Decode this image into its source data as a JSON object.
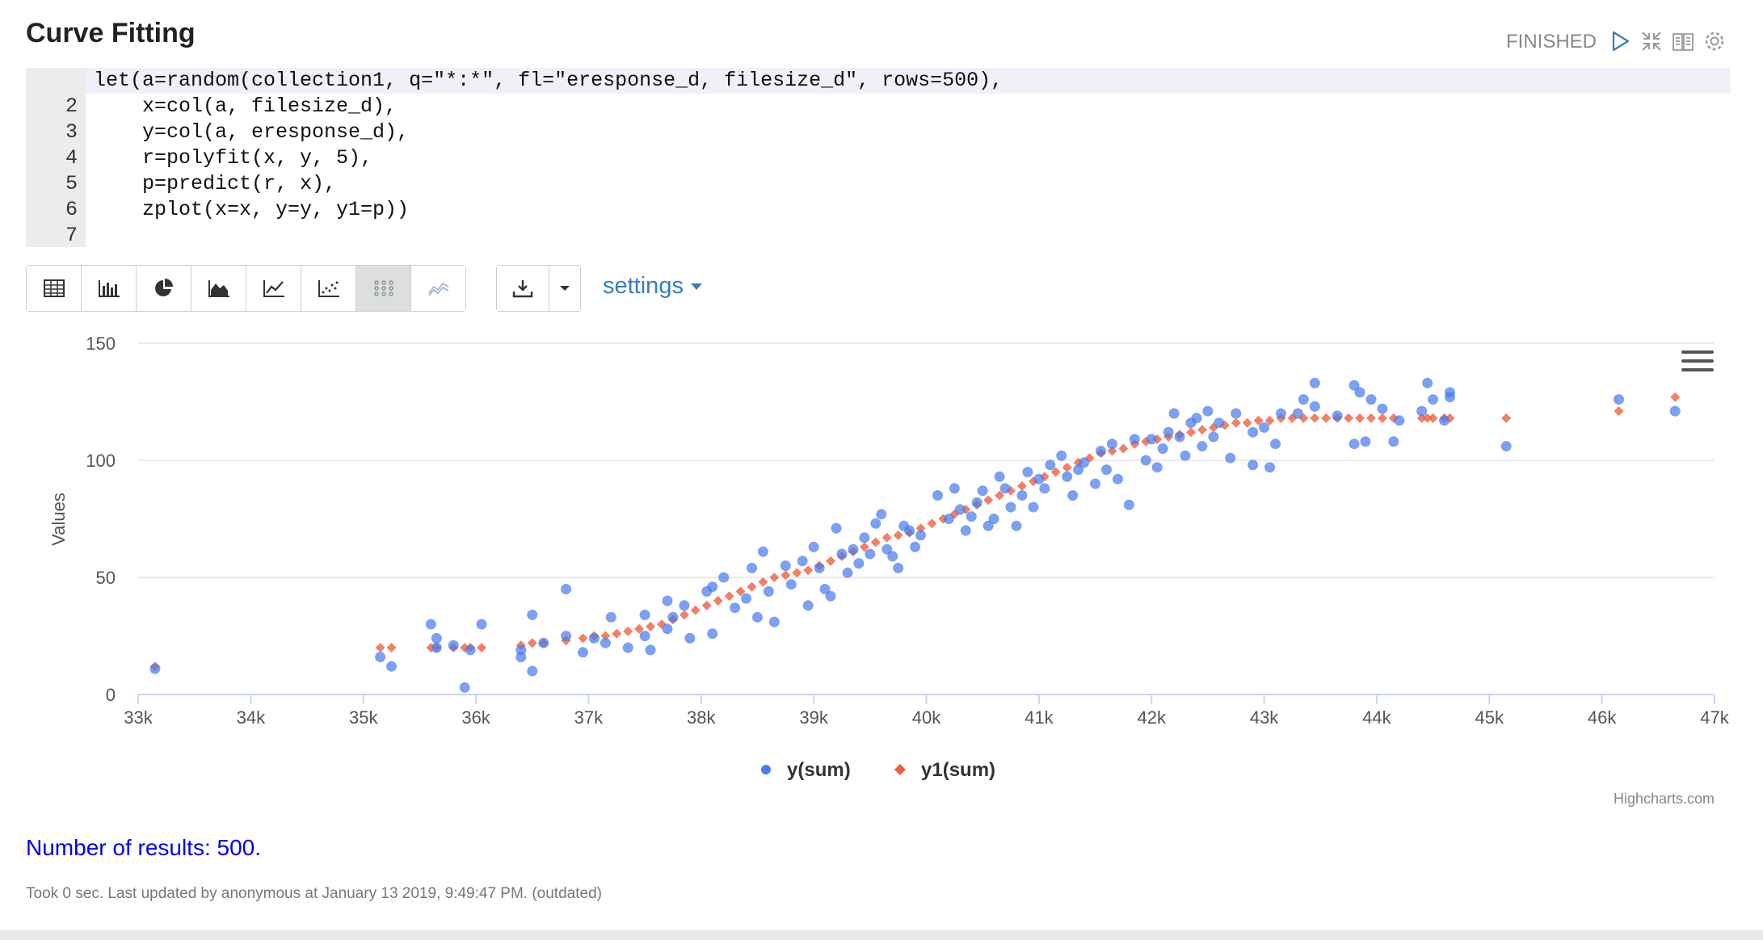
{
  "paragraph": {
    "title": "Curve Fitting",
    "status": "FINISHED",
    "icons": [
      "run-icon",
      "collapse-icon",
      "book-icon",
      "gear-icon"
    ]
  },
  "editor": {
    "line_numbers": [
      "",
      "2",
      "3",
      "4",
      "5",
      "6",
      "7"
    ],
    "lines": [
      "let(a=random(collection1, q=\"*:*\", fl=\"eresponse_d, filesize_d\", rows=500),",
      "    x=col(a, filesize_d),",
      "    y=col(a, eresponse_d),",
      "    r=polyfit(x, y, 5),",
      "    p=predict(r, x),",
      "    zplot(x=x, y=y, y1=p))",
      ""
    ]
  },
  "toolbar": {
    "view_buttons": [
      "table-icon",
      "bar-chart-icon",
      "pie-chart-icon",
      "area-chart-icon",
      "line-chart-icon",
      "scatter-chart-icon",
      "bubble-chart-icon",
      "trend-chart-icon"
    ],
    "active_view": "bubble-chart-icon",
    "export_buttons": [
      "download-icon",
      "caret-down-icon"
    ],
    "settings_label": "settings"
  },
  "chart_data": {
    "type": "scatter",
    "ylabel": "Values",
    "xlabel": "",
    "xlim": [
      33000,
      47000
    ],
    "ylim": [
      0,
      150
    ],
    "x_ticks": [
      "33k",
      "34k",
      "35k",
      "36k",
      "37k",
      "38k",
      "39k",
      "40k",
      "41k",
      "42k",
      "43k",
      "44k",
      "45k",
      "46k",
      "47k"
    ],
    "y_ticks": [
      "0",
      "50",
      "100",
      "150"
    ],
    "grid": true,
    "legend": "bottom-center",
    "credit": "Highcharts.com",
    "colors": {
      "y": "#4a7ced",
      "y1": "#f0603f"
    },
    "series": [
      {
        "name": "y(sum)",
        "marker": "circle",
        "points": [
          [
            33150,
            11
          ],
          [
            35150,
            16
          ],
          [
            35250,
            12
          ],
          [
            35600,
            30
          ],
          [
            35650,
            24
          ],
          [
            35650,
            20
          ],
          [
            35800,
            21
          ],
          [
            35900,
            3
          ],
          [
            35950,
            19
          ],
          [
            36050,
            30
          ],
          [
            36400,
            16
          ],
          [
            36400,
            19
          ],
          [
            36500,
            34
          ],
          [
            36500,
            10
          ],
          [
            36600,
            22
          ],
          [
            36800,
            45
          ],
          [
            36800,
            25
          ],
          [
            36950,
            18
          ],
          [
            37050,
            24
          ],
          [
            37150,
            22
          ],
          [
            37200,
            33
          ],
          [
            37350,
            20
          ],
          [
            37500,
            25
          ],
          [
            37500,
            34
          ],
          [
            37550,
            19
          ],
          [
            37700,
            40
          ],
          [
            37700,
            28
          ],
          [
            37750,
            33
          ],
          [
            37850,
            38
          ],
          [
            37900,
            24
          ],
          [
            38050,
            44
          ],
          [
            38100,
            46
          ],
          [
            38100,
            26
          ],
          [
            38200,
            50
          ],
          [
            38300,
            37
          ],
          [
            38400,
            41
          ],
          [
            38450,
            54
          ],
          [
            38500,
            33
          ],
          [
            38550,
            61
          ],
          [
            38600,
            44
          ],
          [
            38650,
            31
          ],
          [
            38750,
            55
          ],
          [
            38800,
            47
          ],
          [
            38900,
            57
          ],
          [
            38950,
            38
          ],
          [
            39000,
            63
          ],
          [
            39050,
            54
          ],
          [
            39100,
            45
          ],
          [
            39150,
            42
          ],
          [
            39200,
            71
          ],
          [
            39250,
            60
          ],
          [
            39300,
            52
          ],
          [
            39350,
            62
          ],
          [
            39400,
            56
          ],
          [
            39450,
            67
          ],
          [
            39500,
            60
          ],
          [
            39550,
            73
          ],
          [
            39600,
            77
          ],
          [
            39650,
            62
          ],
          [
            39700,
            59
          ],
          [
            39750,
            54
          ],
          [
            39800,
            72
          ],
          [
            39850,
            70
          ],
          [
            39900,
            63
          ],
          [
            39950,
            68
          ],
          [
            40100,
            85
          ],
          [
            40200,
            75
          ],
          [
            40250,
            88
          ],
          [
            40300,
            79
          ],
          [
            40350,
            70
          ],
          [
            40400,
            76
          ],
          [
            40450,
            82
          ],
          [
            40500,
            87
          ],
          [
            40550,
            72
          ],
          [
            40600,
            75
          ],
          [
            40650,
            93
          ],
          [
            40700,
            88
          ],
          [
            40750,
            80
          ],
          [
            40800,
            72
          ],
          [
            40850,
            85
          ],
          [
            40900,
            95
          ],
          [
            40950,
            80
          ],
          [
            41000,
            92
          ],
          [
            41050,
            88
          ],
          [
            41100,
            98
          ],
          [
            41200,
            102
          ],
          [
            41250,
            93
          ],
          [
            41300,
            85
          ],
          [
            41350,
            96
          ],
          [
            41400,
            99
          ],
          [
            41500,
            90
          ],
          [
            41550,
            104
          ],
          [
            41600,
            96
          ],
          [
            41650,
            107
          ],
          [
            41700,
            92
          ],
          [
            41800,
            81
          ],
          [
            41850,
            109
          ],
          [
            41950,
            100
          ],
          [
            42000,
            109
          ],
          [
            42050,
            97
          ],
          [
            42100,
            105
          ],
          [
            42150,
            112
          ],
          [
            42200,
            120
          ],
          [
            42250,
            110
          ],
          [
            42300,
            102
          ],
          [
            42350,
            116
          ],
          [
            42400,
            118
          ],
          [
            42450,
            106
          ],
          [
            42500,
            121
          ],
          [
            42550,
            110
          ],
          [
            42600,
            116
          ],
          [
            42700,
            101
          ],
          [
            42750,
            120
          ],
          [
            42900,
            112
          ],
          [
            42900,
            98
          ],
          [
            43000,
            114
          ],
          [
            43050,
            97
          ],
          [
            43100,
            107
          ],
          [
            43150,
            120
          ],
          [
            43300,
            120
          ],
          [
            43350,
            126
          ],
          [
            43450,
            123
          ],
          [
            43450,
            133
          ],
          [
            43650,
            119
          ],
          [
            43800,
            107
          ],
          [
            43800,
            132
          ],
          [
            43850,
            129
          ],
          [
            43900,
            108
          ],
          [
            43950,
            126
          ],
          [
            44050,
            122
          ],
          [
            44150,
            108
          ],
          [
            44200,
            117
          ],
          [
            44400,
            121
          ],
          [
            44450,
            133
          ],
          [
            44500,
            126
          ],
          [
            44600,
            117
          ],
          [
            44650,
            129
          ],
          [
            44650,
            127
          ],
          [
            45150,
            106
          ],
          [
            46150,
            126
          ],
          [
            46650,
            121
          ]
        ]
      },
      {
        "name": "y1(sum)",
        "marker": "diamond",
        "points": [
          [
            33150,
            12
          ],
          [
            35150,
            20
          ],
          [
            35250,
            20
          ],
          [
            35600,
            20
          ],
          [
            35650,
            20
          ],
          [
            35800,
            20
          ],
          [
            35900,
            20
          ],
          [
            35950,
            20
          ],
          [
            36050,
            20
          ],
          [
            36400,
            21
          ],
          [
            36500,
            22
          ],
          [
            36600,
            22
          ],
          [
            36800,
            23
          ],
          [
            36950,
            24
          ],
          [
            37050,
            25
          ],
          [
            37150,
            25
          ],
          [
            37250,
            26
          ],
          [
            37350,
            27
          ],
          [
            37450,
            28
          ],
          [
            37550,
            29
          ],
          [
            37650,
            30
          ],
          [
            37750,
            32
          ],
          [
            37850,
            34
          ],
          [
            37950,
            36
          ],
          [
            38050,
            38
          ],
          [
            38150,
            40
          ],
          [
            38250,
            42
          ],
          [
            38350,
            44
          ],
          [
            38450,
            46
          ],
          [
            38550,
            48
          ],
          [
            38650,
            50
          ],
          [
            38750,
            51
          ],
          [
            38850,
            52
          ],
          [
            38950,
            53
          ],
          [
            39050,
            55
          ],
          [
            39150,
            57
          ],
          [
            39250,
            59
          ],
          [
            39350,
            61
          ],
          [
            39450,
            63
          ],
          [
            39550,
            65
          ],
          [
            39650,
            67
          ],
          [
            39750,
            68
          ],
          [
            39850,
            69
          ],
          [
            39950,
            71
          ],
          [
            40050,
            73
          ],
          [
            40150,
            75
          ],
          [
            40250,
            77
          ],
          [
            40350,
            79
          ],
          [
            40450,
            81
          ],
          [
            40550,
            83
          ],
          [
            40650,
            85
          ],
          [
            40750,
            87
          ],
          [
            40850,
            89
          ],
          [
            40950,
            91
          ],
          [
            41050,
            93
          ],
          [
            41150,
            95
          ],
          [
            41250,
            97
          ],
          [
            41350,
            99
          ],
          [
            41450,
            101
          ],
          [
            41550,
            103
          ],
          [
            41650,
            104
          ],
          [
            41750,
            105
          ],
          [
            41850,
            107
          ],
          [
            41950,
            108
          ],
          [
            42050,
            109
          ],
          [
            42150,
            110
          ],
          [
            42250,
            111
          ],
          [
            42350,
            112
          ],
          [
            42450,
            113
          ],
          [
            42550,
            114
          ],
          [
            42650,
            115
          ],
          [
            42750,
            116
          ],
          [
            42850,
            116
          ],
          [
            42950,
            117
          ],
          [
            43050,
            117
          ],
          [
            43150,
            118
          ],
          [
            43250,
            118
          ],
          [
            43350,
            118
          ],
          [
            43450,
            118
          ],
          [
            43550,
            118
          ],
          [
            43650,
            118
          ],
          [
            43750,
            118
          ],
          [
            43850,
            118
          ],
          [
            43950,
            118
          ],
          [
            44050,
            118
          ],
          [
            44150,
            118
          ],
          [
            44400,
            118
          ],
          [
            44450,
            118
          ],
          [
            44500,
            118
          ],
          [
            44600,
            118
          ],
          [
            44650,
            118
          ],
          [
            45150,
            118
          ],
          [
            46150,
            121
          ],
          [
            46650,
            127
          ]
        ]
      }
    ]
  },
  "results": "Number of results: 500.",
  "footer": "Took 0 sec. Last updated by anonymous at January 13 2019, 9:49:47 PM. (outdated)"
}
